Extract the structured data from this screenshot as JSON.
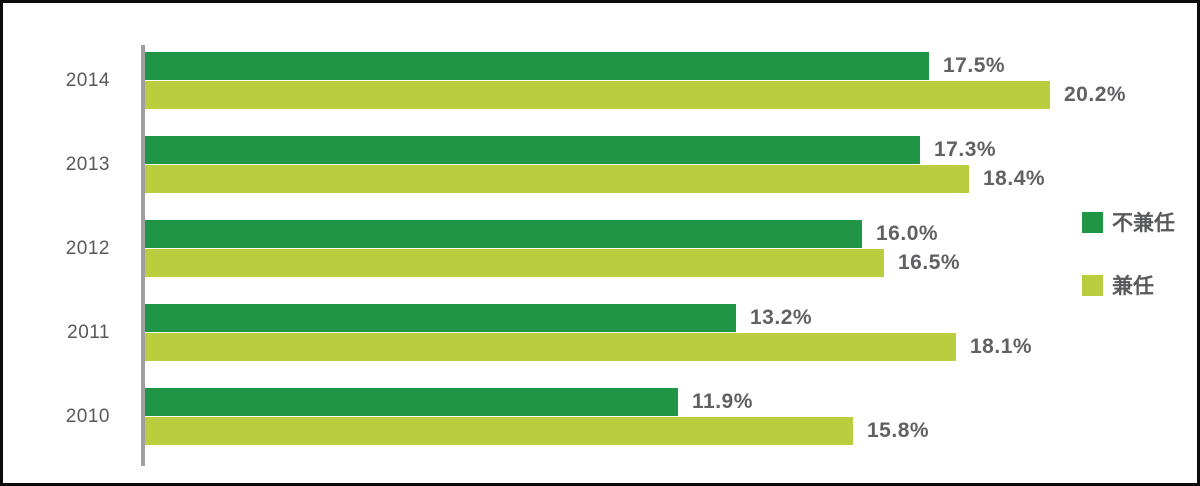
{
  "chart_data": {
    "type": "bar",
    "orientation": "horizontal",
    "title": "",
    "xlabel": "",
    "ylabel": "",
    "xlim": [
      0,
      21
    ],
    "grid": false,
    "legend_position": "right",
    "value_suffix": "%",
    "categories": [
      "2014",
      "2013",
      "2012",
      "2011",
      "2010"
    ],
    "series": [
      {
        "name": "不兼任",
        "color": "#1f9545",
        "values": [
          17.5,
          17.3,
          16.0,
          13.2,
          11.9
        ],
        "labels": [
          "17.5%",
          "17.3%",
          "16.0%",
          "13.2%",
          "11.9%"
        ]
      },
      {
        "name": "兼任",
        "color": "#b9cd3e",
        "values": [
          20.2,
          18.4,
          16.5,
          18.1,
          15.8
        ],
        "labels": [
          "20.2%",
          "18.4%",
          "16.5%",
          "18.1%",
          "15.8%"
        ]
      }
    ]
  },
  "legend": {
    "items": [
      {
        "label": "不兼任",
        "color": "#1f9545"
      },
      {
        "label": "兼任",
        "color": "#b9cd3e"
      }
    ]
  },
  "colors": {
    "axis": "#9d9fa2",
    "text": "#59595b",
    "value_text": "#606164",
    "frame": "#0b0b0b",
    "background": "#ffffff"
  }
}
